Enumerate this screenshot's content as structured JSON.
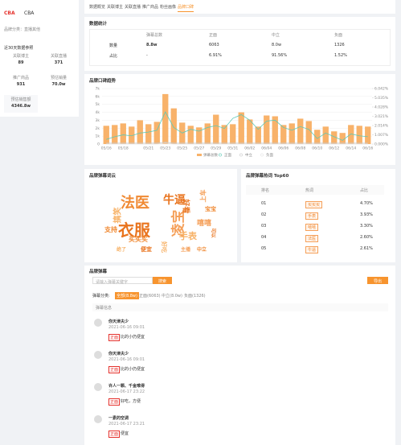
{
  "sidebar": {
    "logo": "CBA",
    "brand": "CBA",
    "category": "品牌分类：直播其他",
    "period": "近30天数据参照",
    "stats": [
      {
        "label": "关联博主",
        "value": "89"
      },
      {
        "label": "关联直播",
        "value": "371"
      },
      {
        "label": "推广商品",
        "value": "931"
      },
      {
        "label": "预估销量",
        "value": "70.0w"
      },
      {
        "label": "预估销售额",
        "value": "4346.8w"
      }
    ]
  },
  "tabs": [
    "数据概览",
    "关联博主",
    "关联直播",
    "推广商品",
    "粉丝画像",
    "品牌口碑"
  ],
  "stats": {
    "title": "数据统计",
    "headers": [
      "弹幕总数",
      "正面",
      "中立",
      "负面"
    ],
    "rows": [
      [
        "数量",
        "8.8w",
        "6063",
        "8.0w",
        "1326"
      ],
      [
        "占比",
        "-",
        "6.91%",
        "91.56%",
        "1.52%"
      ]
    ]
  },
  "trend_chart": {
    "type": "bar",
    "title": "品牌口碑趋势",
    "categories": [
      "05/16",
      null,
      "05/18",
      null,
      null,
      "05/21",
      null,
      "05/23",
      null,
      "05/25",
      null,
      "05/27",
      null,
      "05/29",
      null,
      "05/31",
      null,
      "06/02",
      null,
      "06/04",
      null,
      "06/06",
      null,
      "06/08",
      null,
      "06/10",
      null,
      "06/12",
      null,
      "06/14",
      null,
      "06/16"
    ],
    "series": [
      {
        "name": "弹幕总数",
        "color": "#f8b26a",
        "values": [
          2300,
          2400,
          2600,
          2200,
          3000,
          2500,
          2800,
          6300,
          4500,
          2700,
          2300,
          2100,
          2600,
          3700,
          2400,
          2500,
          4000,
          3100,
          2200,
          3600,
          3500,
          2400,
          2600,
          3200,
          2900,
          1800,
          2200,
          1600,
          1400,
          2400,
          2300,
          2200
        ]
      },
      {
        "name": "正面",
        "color": "#5cc8b6",
        "axis": "y2",
        "values": [
          0.5,
          0.8,
          1.0,
          0.9,
          1.2,
          1.3,
          1.5,
          3.5,
          1.8,
          1.2,
          1.6,
          1.4,
          1.8,
          2.0,
          1.7,
          2.8,
          3.2,
          2.6,
          1.6,
          2.5,
          2.6,
          1.8,
          1.5,
          1.9,
          1.6,
          0.6,
          1.2,
          0.8,
          0.4,
          1.1,
          0.9,
          0.8
        ]
      },
      {
        "name": "中立",
        "color": "#c9c9c9",
        "axis": "y2",
        "values": [
          0.1,
          0.1,
          0.1,
          0.1,
          0.1,
          0.1,
          0.1,
          0.2,
          0.1,
          0.1,
          0.1,
          0.1,
          0.1,
          0.1,
          0.1,
          0.1,
          0.1,
          0.1,
          0.1,
          0.1,
          0.1,
          0.1,
          0.1,
          0.1,
          0.1,
          0.1,
          0.1,
          0.1,
          0.1,
          0.1,
          0.1,
          0.1
        ]
      },
      {
        "name": "负面",
        "color": "#e3e3e3",
        "axis": "y2",
        "values": [
          0,
          0,
          0,
          0,
          0,
          0,
          0,
          0.1,
          0,
          0,
          0,
          0,
          0,
          0,
          0,
          0,
          0,
          0,
          0,
          0,
          0,
          0,
          0,
          0,
          0,
          0,
          0,
          0,
          0,
          0,
          0,
          0
        ]
      }
    ],
    "ylim": [
      0,
      7000
    ],
    "yticks": [
      0,
      {
        "value": 1000,
        "label": "1k"
      },
      {
        "value": 2000,
        "label": "2k"
      },
      {
        "value": 3000,
        "label": "3k"
      },
      {
        "value": 4000,
        "label": "4k"
      },
      {
        "value": 5000,
        "label": "5k"
      },
      {
        "value": 6000,
        "label": "6k"
      },
      {
        "value": 7000,
        "label": "7k"
      }
    ],
    "y2lim": [
      0,
      6.042
    ],
    "y2ticks": [
      {
        "value": 0,
        "label": "0.000%"
      },
      {
        "value": 1.007,
        "label": "1.007%"
      },
      {
        "value": 2.014,
        "label": "2.014%"
      },
      {
        "value": 3.021,
        "label": "3.021%"
      },
      {
        "value": 4.028,
        "label": "4.028%"
      },
      {
        "value": 5.035,
        "label": "5.035%"
      },
      {
        "value": 6.042,
        "label": "6.042%"
      }
    ],
    "grid": true
  },
  "wordcloud": {
    "title": "品牌弹幕词云",
    "words": [
      "法医",
      "衣服",
      "凌宝",
      "牛逼",
      "手表",
      "上车",
      "好看",
      "搞笑",
      "买买买",
      "嘻嘻",
      "支持",
      "便宜",
      "好吃",
      "宝宝",
      "主播",
      "绝了",
      "可以",
      "中立"
    ]
  },
  "top60": {
    "title": "品牌弹幕热词 Top60",
    "headers": [
      "排名",
      "热词",
      "占比"
    ],
    "rows": [
      [
        "01",
        "买买买",
        "4.70%"
      ],
      [
        "02",
        "手表",
        "3.93%"
      ],
      [
        "03",
        "嘻嘻",
        "3.30%"
      ],
      [
        "04",
        "法医",
        "2.60%"
      ],
      [
        "05",
        "牛逼",
        "2.61%"
      ]
    ]
  },
  "comments": {
    "title": "品牌弹幕",
    "search_placeholder": "请输入弹幕关键字",
    "search_button": "搜索",
    "export_button": "导出",
    "filter_label": "弹幕分类:",
    "filters": [
      "全部(8.8w)",
      "正面(6063)",
      "中立(8.0w)",
      "负面(1326)"
    ],
    "list_header": "弹幕信息",
    "items": [
      {
        "user": "你天津夫少",
        "time": "2021-06-16 09:01",
        "tag": "正面",
        "text": "比的小仍便宜"
      },
      {
        "user": "你天津夫少",
        "time": "2021-06-16 09:01",
        "tag": "正面",
        "text": "比的小仍便宜"
      },
      {
        "user": "许人一颗、千金难得",
        "time": "2021-06-17 23:22",
        "tag": "正面",
        "text": "好吃，方便"
      },
      {
        "user": "一素的空调",
        "time": "2021-06-17 23:21",
        "tag": "正面",
        "text": "便宜"
      }
    ]
  }
}
